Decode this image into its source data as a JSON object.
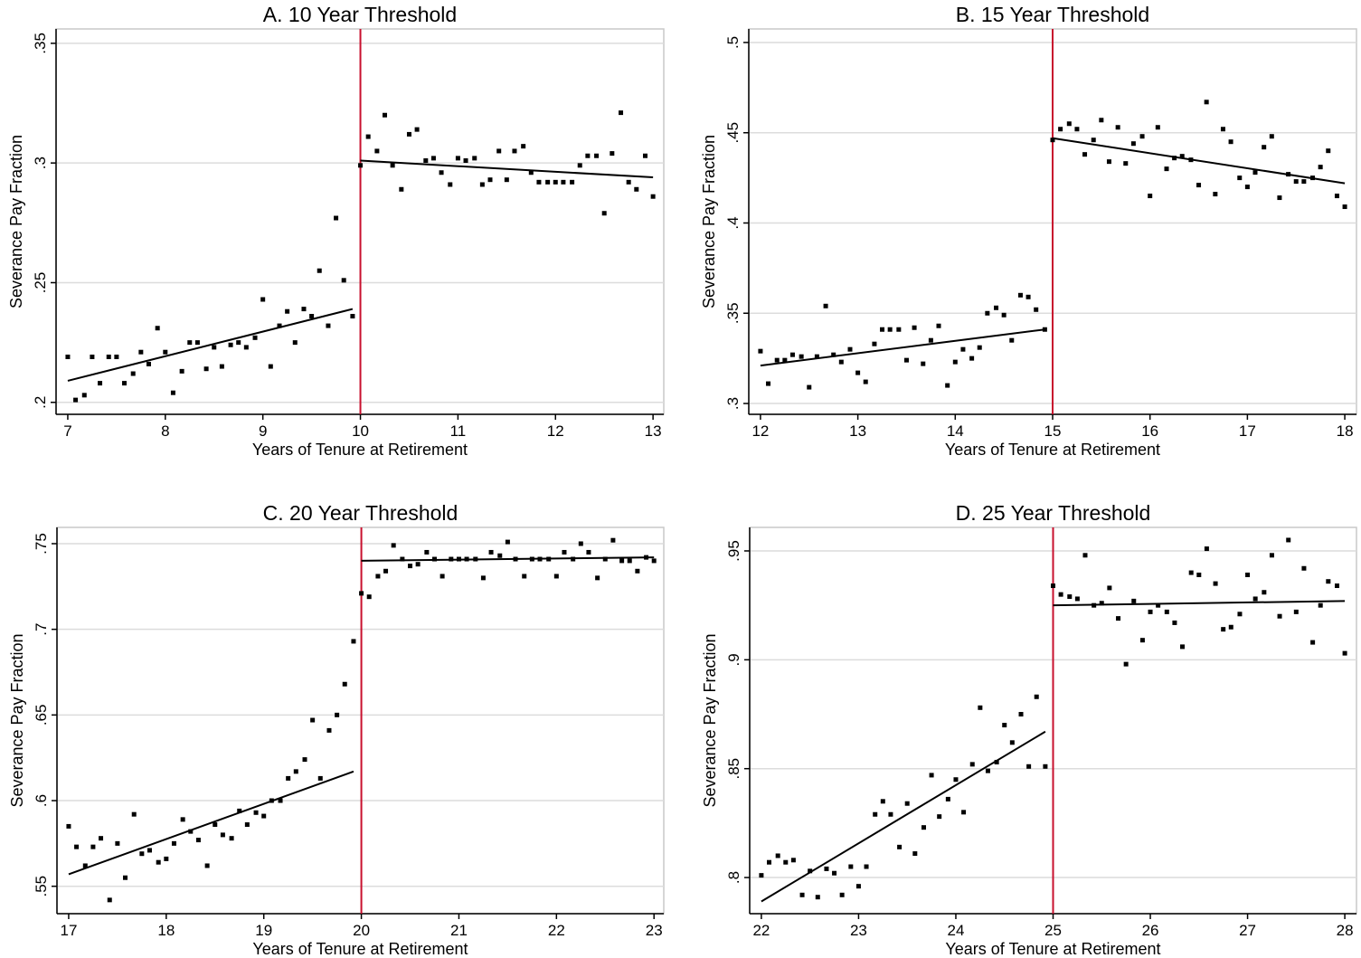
{
  "chart_data": [
    {
      "type": "scatter",
      "title": "A. 10 Year Threshold",
      "xlabel": "Years of Tenure at Retirement",
      "ylabel": "Severance Pay Fraction",
      "xlim": [
        6.88,
        13.11
      ],
      "ylim": [
        0.195,
        0.356
      ],
      "xticks": [
        7,
        8,
        9,
        10,
        11,
        12,
        13
      ],
      "yticks": [
        {
          "value": 0.2,
          "label": ".2"
        },
        {
          "value": 0.25,
          "label": ".25"
        },
        {
          "value": 0.3,
          "label": ".3"
        },
        {
          "value": 0.35,
          "label": ".35"
        }
      ],
      "grid": true,
      "color": "#000000",
      "threshold": 10,
      "threshold_color": "#c8102e",
      "x": [
        7,
        7.08,
        7.17,
        7.25,
        7.33,
        7.42,
        7.5,
        7.58,
        7.67,
        7.75,
        7.83,
        7.92,
        8,
        8.08,
        8.17,
        8.25,
        8.33,
        8.42,
        8.5,
        8.58,
        8.67,
        8.75,
        8.83,
        8.92,
        9,
        9.08,
        9.17,
        9.25,
        9.33,
        9.42,
        9.5,
        9.58,
        9.67,
        9.75,
        9.83,
        9.92,
        10,
        10.08,
        10.17,
        10.25,
        10.33,
        10.42,
        10.5,
        10.58,
        10.67,
        10.75,
        10.83,
        10.92,
        11,
        11.08,
        11.17,
        11.25,
        11.33,
        11.42,
        11.5,
        11.58,
        11.67,
        11.75,
        11.83,
        11.92,
        12,
        12.08,
        12.17,
        12.25,
        12.33,
        12.42,
        12.5,
        12.58,
        12.67,
        12.75,
        12.83,
        12.92,
        13
      ],
      "values": [
        0.219,
        0.201,
        0.203,
        0.219,
        0.208,
        0.219,
        0.219,
        0.208,
        0.212,
        0.221,
        0.216,
        0.231,
        0.221,
        0.204,
        0.213,
        0.225,
        0.225,
        0.214,
        0.223,
        0.215,
        0.224,
        0.225,
        0.223,
        0.227,
        0.243,
        0.215,
        0.232,
        0.238,
        0.225,
        0.239,
        0.236,
        0.255,
        0.232,
        0.277,
        0.251,
        0.236,
        0.299,
        0.311,
        0.305,
        0.32,
        0.299,
        0.289,
        0.312,
        0.314,
        0.301,
        0.302,
        0.296,
        0.291,
        0.302,
        0.301,
        0.302,
        0.291,
        0.293,
        0.305,
        0.293,
        0.305,
        0.307,
        0.296,
        0.292,
        0.292,
        0.292,
        0.292,
        0.292,
        0.299,
        0.303,
        0.303,
        0.279,
        0.304,
        0.321,
        0.292,
        0.289,
        0.303,
        0.286
      ],
      "fits": [
        {
          "x": [
            7,
            9.92
          ],
          "values": [
            0.209,
            0.239
          ]
        },
        {
          "x": [
            10,
            13
          ],
          "values": [
            0.301,
            0.294
          ]
        }
      ]
    },
    {
      "type": "scatter",
      "title": "B. 15 Year Threshold",
      "xlabel": "Years of Tenure at Retirement",
      "ylabel": "Severance Pay Fraction",
      "xlim": [
        11.88,
        18.12
      ],
      "ylim": [
        0.294,
        0.5075
      ],
      "xticks": [
        12,
        13,
        14,
        15,
        16,
        17,
        18
      ],
      "yticks": [
        {
          "value": 0.3,
          "label": ".3"
        },
        {
          "value": 0.35,
          "label": ".35"
        },
        {
          "value": 0.4,
          "label": ".4"
        },
        {
          "value": 0.45,
          "label": ".45"
        },
        {
          "value": 0.5,
          "label": ".5"
        }
      ],
      "grid": true,
      "color": "#000000",
      "threshold": 15,
      "threshold_color": "#c8102e",
      "x": [
        12,
        12.08,
        12.17,
        12.25,
        12.33,
        12.42,
        12.5,
        12.58,
        12.67,
        12.75,
        12.83,
        12.92,
        13,
        13.08,
        13.17,
        13.25,
        13.33,
        13.42,
        13.5,
        13.58,
        13.67,
        13.75,
        13.83,
        13.92,
        14,
        14.08,
        14.17,
        14.25,
        14.33,
        14.42,
        14.5,
        14.58,
        14.67,
        14.75,
        14.83,
        14.92,
        15,
        15.08,
        15.17,
        15.25,
        15.33,
        15.42,
        15.5,
        15.58,
        15.67,
        15.75,
        15.83,
        15.92,
        16,
        16.08,
        16.17,
        16.25,
        16.33,
        16.42,
        16.5,
        16.58,
        16.67,
        16.75,
        16.83,
        16.92,
        17,
        17.08,
        17.17,
        17.25,
        17.33,
        17.42,
        17.5,
        17.58,
        17.67,
        17.75,
        17.83,
        17.92,
        18
      ],
      "values": [
        0.329,
        0.311,
        0.324,
        0.324,
        0.327,
        0.326,
        0.309,
        0.326,
        0.354,
        0.327,
        0.323,
        0.33,
        0.317,
        0.312,
        0.333,
        0.341,
        0.341,
        0.341,
        0.324,
        0.342,
        0.322,
        0.335,
        0.343,
        0.31,
        0.323,
        0.33,
        0.325,
        0.331,
        0.35,
        0.353,
        0.349,
        0.335,
        0.36,
        0.359,
        0.352,
        0.341,
        0.446,
        0.452,
        0.455,
        0.452,
        0.438,
        0.446,
        0.457,
        0.434,
        0.453,
        0.433,
        0.444,
        0.448,
        0.415,
        0.453,
        0.43,
        0.436,
        0.437,
        0.435,
        0.421,
        0.467,
        0.416,
        0.452,
        0.445,
        0.425,
        0.42,
        0.428,
        0.442,
        0.448,
        0.414,
        0.427,
        0.423,
        0.423,
        0.425,
        0.431,
        0.44,
        0.415,
        0.409
      ],
      "fits": [
        {
          "x": [
            12,
            14.92
          ],
          "values": [
            0.321,
            0.341
          ]
        },
        {
          "x": [
            15,
            18
          ],
          "values": [
            0.447,
            0.422
          ]
        }
      ]
    },
    {
      "type": "scatter",
      "title": "C. 20 Year Threshold",
      "xlabel": "Years of Tenure at Retirement",
      "ylabel": "Severance Pay Fraction",
      "xlim": [
        16.88,
        23.1
      ],
      "ylim": [
        0.534,
        0.7595
      ],
      "xticks": [
        17,
        18,
        19,
        20,
        21,
        22,
        23
      ],
      "yticks": [
        {
          "value": 0.55,
          "label": ".55"
        },
        {
          "value": 0.6,
          "label": ".6"
        },
        {
          "value": 0.65,
          "label": ".65"
        },
        {
          "value": 0.7,
          "label": ".7"
        },
        {
          "value": 0.75,
          "label": ".75"
        }
      ],
      "grid": true,
      "color": "#000000",
      "threshold": 20,
      "threshold_color": "#c8102e",
      "x": [
        17,
        17.08,
        17.17,
        17.25,
        17.33,
        17.42,
        17.5,
        17.58,
        17.67,
        17.75,
        17.83,
        17.92,
        18,
        18.08,
        18.17,
        18.25,
        18.33,
        18.42,
        18.5,
        18.58,
        18.67,
        18.75,
        18.83,
        18.92,
        19,
        19.08,
        19.17,
        19.25,
        19.33,
        19.42,
        19.5,
        19.58,
        19.67,
        19.75,
        19.83,
        19.92,
        20,
        20.08,
        20.17,
        20.25,
        20.33,
        20.42,
        20.5,
        20.58,
        20.67,
        20.75,
        20.83,
        20.92,
        21,
        21.08,
        21.17,
        21.25,
        21.33,
        21.42,
        21.5,
        21.58,
        21.67,
        21.75,
        21.83,
        21.92,
        22,
        22.08,
        22.17,
        22.25,
        22.33,
        22.42,
        22.5,
        22.58,
        22.67,
        22.75,
        22.83,
        22.92,
        23
      ],
      "values": [
        0.585,
        0.573,
        0.562,
        0.573,
        0.578,
        0.542,
        0.575,
        0.555,
        0.592,
        0.569,
        0.571,
        0.564,
        0.566,
        0.575,
        0.589,
        0.582,
        0.577,
        0.562,
        0.586,
        0.58,
        0.578,
        0.594,
        0.586,
        0.593,
        0.591,
        0.6,
        0.6,
        0.613,
        0.617,
        0.624,
        0.647,
        0.613,
        0.641,
        0.65,
        0.668,
        0.693,
        0.721,
        0.719,
        0.731,
        0.734,
        0.749,
        0.741,
        0.737,
        0.738,
        0.745,
        0.741,
        0.731,
        0.741,
        0.741,
        0.741,
        0.741,
        0.73,
        0.745,
        0.743,
        0.751,
        0.741,
        0.731,
        0.741,
        0.741,
        0.741,
        0.731,
        0.745,
        0.741,
        0.75,
        0.745,
        0.73,
        0.741,
        0.752,
        0.74,
        0.74,
        0.734,
        0.742,
        0.74
      ],
      "fits": [
        {
          "x": [
            17,
            19.92
          ],
          "values": [
            0.557,
            0.617
          ]
        },
        {
          "x": [
            20,
            23
          ],
          "values": [
            0.74,
            0.742
          ]
        }
      ]
    },
    {
      "type": "scatter",
      "title": "D. 25 Year Threshold",
      "xlabel": "Years of Tenure at Retirement",
      "ylabel": "Severance Pay Fraction",
      "xlim": [
        21.88,
        28.12
      ],
      "ylim": [
        0.7834,
        0.9608
      ],
      "xticks": [
        22,
        23,
        24,
        25,
        26,
        27,
        28
      ],
      "yticks": [
        {
          "value": 0.8,
          "label": ".8"
        },
        {
          "value": 0.85,
          "label": ".85"
        },
        {
          "value": 0.9,
          "label": ".9"
        },
        {
          "value": 0.95,
          "label": ".95"
        }
      ],
      "grid": true,
      "color": "#000000",
      "threshold": 25,
      "threshold_color": "#c8102e",
      "x": [
        22,
        22.08,
        22.17,
        22.25,
        22.33,
        22.42,
        22.5,
        22.58,
        22.67,
        22.75,
        22.83,
        22.92,
        23,
        23.08,
        23.17,
        23.25,
        23.33,
        23.42,
        23.5,
        23.58,
        23.67,
        23.75,
        23.83,
        23.92,
        24,
        24.08,
        24.17,
        24.25,
        24.33,
        24.42,
        24.5,
        24.58,
        24.67,
        24.75,
        24.83,
        24.92,
        25,
        25.08,
        25.17,
        25.25,
        25.33,
        25.42,
        25.5,
        25.58,
        25.67,
        25.75,
        25.83,
        25.92,
        26,
        26.08,
        26.17,
        26.25,
        26.33,
        26.42,
        26.5,
        26.58,
        26.67,
        26.75,
        26.83,
        26.92,
        27,
        27.08,
        27.17,
        27.25,
        27.33,
        27.42,
        27.5,
        27.58,
        27.67,
        27.75,
        27.83,
        27.92,
        28
      ],
      "values": [
        0.801,
        0.807,
        0.81,
        0.807,
        0.808,
        0.792,
        0.803,
        0.791,
        0.804,
        0.802,
        0.792,
        0.805,
        0.796,
        0.805,
        0.829,
        0.835,
        0.829,
        0.814,
        0.834,
        0.811,
        0.823,
        0.847,
        0.828,
        0.836,
        0.845,
        0.83,
        0.852,
        0.878,
        0.849,
        0.853,
        0.87,
        0.862,
        0.875,
        0.851,
        0.883,
        0.851,
        0.934,
        0.93,
        0.929,
        0.928,
        0.948,
        0.925,
        0.926,
        0.933,
        0.919,
        0.898,
        0.927,
        0.909,
        0.922,
        0.925,
        0.922,
        0.917,
        0.906,
        0.94,
        0.939,
        0.951,
        0.935,
        0.914,
        0.915,
        0.921,
        0.939,
        0.928,
        0.931,
        0.948,
        0.92,
        0.955,
        0.922,
        0.942,
        0.908,
        0.925,
        0.936,
        0.934,
        0.903
      ],
      "fits": [
        {
          "x": [
            22,
            24.92
          ],
          "values": [
            0.789,
            0.867
          ]
        },
        {
          "x": [
            25,
            28
          ],
          "values": [
            0.925,
            0.927
          ]
        }
      ]
    }
  ]
}
